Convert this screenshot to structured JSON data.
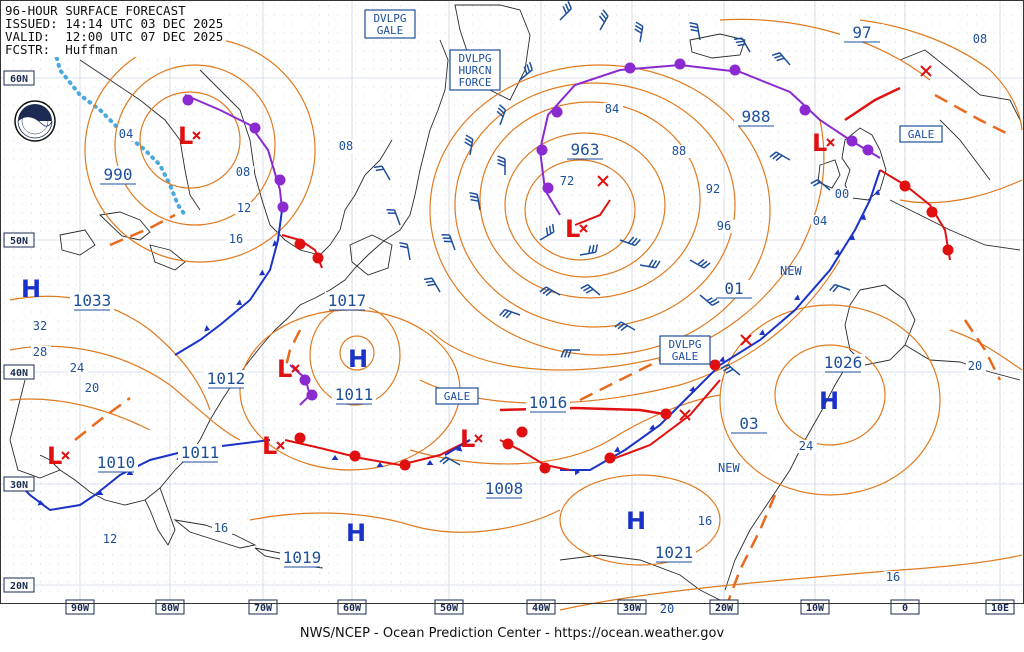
{
  "header": {
    "line1": "96-HOUR SURFACE FORECAST",
    "line2": "ISSUED: 14:14 UTC 03 DEC 2025",
    "line3": "VALID:  12:00 UTC 07 DEC 2025",
    "line4": "FCSTR:  Huffman"
  },
  "footer": "NWS/NCEP - Ocean Prediction Center - https://ocean.weather.gov",
  "colors": {
    "isobar": "#e07a1f",
    "label": "#1d4f9c",
    "cold_front": "#1a32c8",
    "warm_front": "#e01010",
    "occluded_front": "#8a2ad0",
    "grid": "#cfd6e4",
    "coast": "#2b2b2b",
    "ice_edge": "#4aa8e0"
  },
  "logo": {
    "icon": "noaa-logo-icon"
  },
  "lon_labels": [
    "90W",
    "80W",
    "70W",
    "60W",
    "50W",
    "40W",
    "30W",
    "20W",
    "10W",
    "0",
    "10E"
  ],
  "lat_labels": [
    "60N",
    "50N",
    "40N",
    "30N",
    "20N"
  ],
  "pressure_centers": [
    {
      "type": "L",
      "value": "990"
    },
    {
      "type": "L",
      "value": "963"
    },
    {
      "type": "L",
      "value": "988"
    },
    {
      "type": "L",
      "value": "1012"
    },
    {
      "type": "L",
      "value": "1010"
    },
    {
      "type": "L",
      "value": "1011"
    },
    {
      "type": "L",
      "value": "1008"
    },
    {
      "type": "L",
      "value": "1016"
    },
    {
      "type": "H",
      "value": "1033"
    },
    {
      "type": "H",
      "value": "1017"
    },
    {
      "type": "H",
      "value": "1011"
    },
    {
      "type": "H",
      "value": "1019"
    },
    {
      "type": "H",
      "value": "1021"
    },
    {
      "type": "H",
      "value": "1026"
    },
    {
      "type": "H",
      "value": "97"
    },
    {
      "type": "H",
      "value": "01"
    },
    {
      "type": "H",
      "value": "03"
    }
  ],
  "isobar_labels": [
    "04",
    "08",
    "12",
    "16",
    "24",
    "28",
    "20",
    "32",
    "08",
    "72",
    "84",
    "88",
    "92",
    "96",
    "00",
    "04",
    "08",
    "20",
    "24",
    "16",
    "16",
    "12",
    "16",
    "20"
  ],
  "warnings": {
    "dvlpg_gale_top": [
      "DVLPG",
      "GALE"
    ],
    "dvlpg_hurcn": [
      "DVLPG",
      "HURCN",
      "FORCE"
    ],
    "gale_east": "GALE",
    "gale_mid": "GALE",
    "dvlpg_gale_mid": [
      "DVLPG",
      "GALE"
    ]
  },
  "new_labels": [
    "NEW",
    "NEW"
  ]
}
